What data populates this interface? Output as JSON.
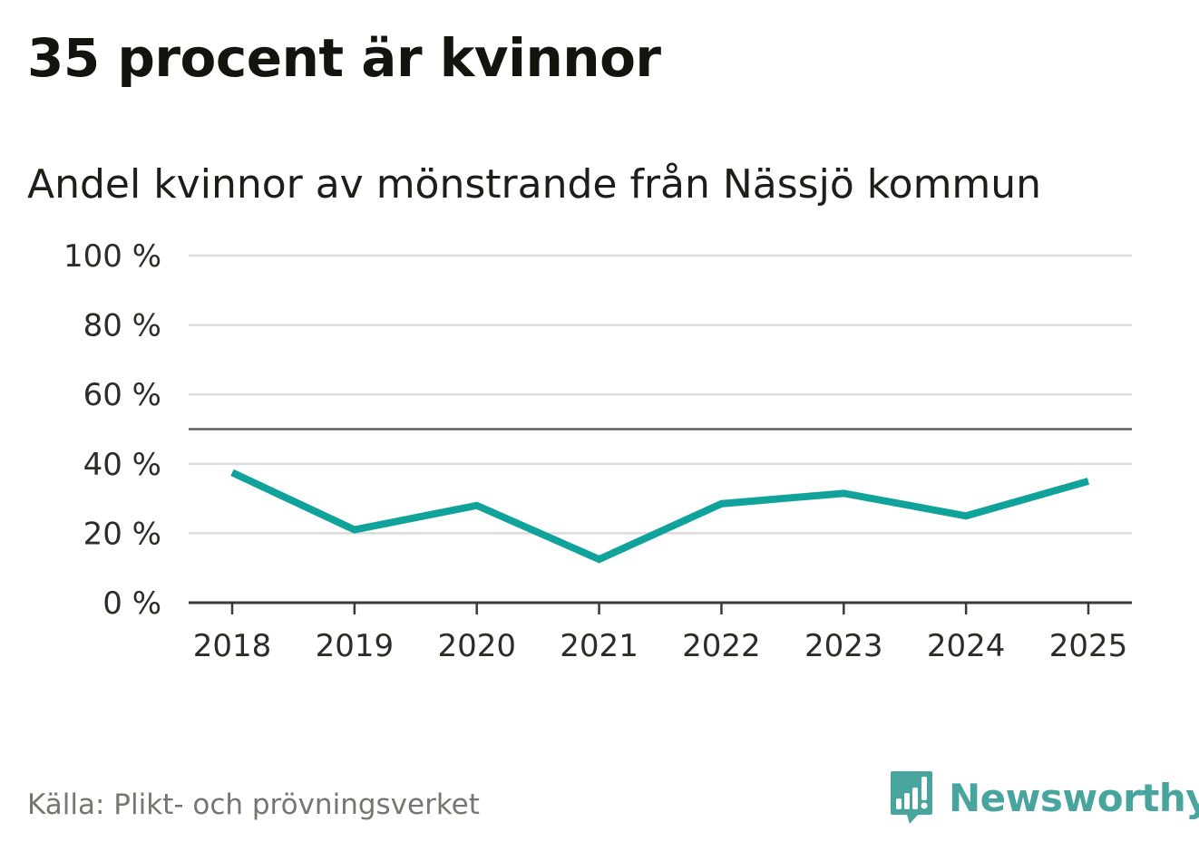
{
  "header": {
    "title": "35 procent är kvinnor",
    "subtitle": "Andel kvinnor av mönstrande från Nässjö kommun"
  },
  "footer": {
    "source": "Källa: Plikt- och prövningsverket",
    "brand": "Newsworthy",
    "brand_icon": "newsworthy-logo-icon"
  },
  "colors": {
    "series": "#0fa39b",
    "grid": "#dcdcdc",
    "reference_line": "#5f5f5a",
    "axis": "#3a3a36",
    "brand": "#48a59d"
  },
  "chart_data": {
    "type": "line",
    "title": "35 procent är kvinnor",
    "subtitle": "Andel kvinnor av mönstrande från Nässjö kommun",
    "x": [
      "2018",
      "2019",
      "2020",
      "2021",
      "2022",
      "2023",
      "2024",
      "2025"
    ],
    "series": [
      {
        "values": [
          37.5,
          21,
          28,
          12.5,
          28.5,
          31.5,
          25,
          35
        ]
      }
    ],
    "reference_line": 50,
    "ylim": [
      0,
      100
    ],
    "yticks": [
      0,
      20,
      40,
      60,
      80,
      100
    ],
    "ytick_labels": [
      "0 %",
      "20 %",
      "40 %",
      "60 %",
      "80 %",
      "100 %"
    ],
    "grid": true,
    "legend": "none"
  }
}
